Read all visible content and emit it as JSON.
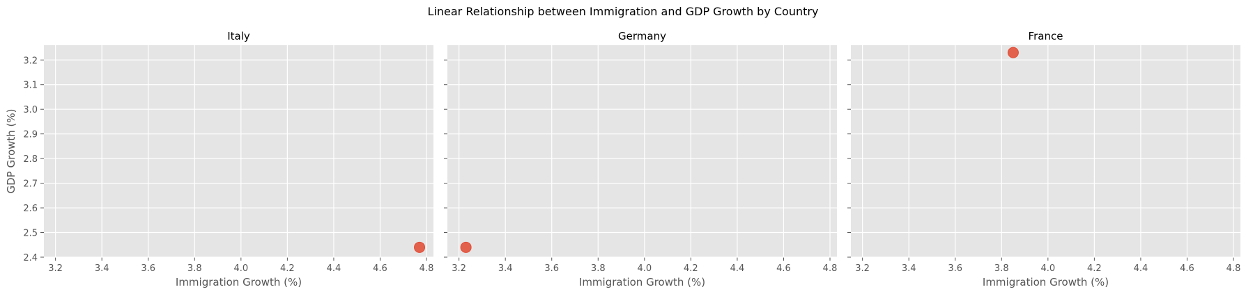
{
  "chart_data": {
    "type": "scatter",
    "title": "Linear Relationship between Immigration and GDP Growth by Country",
    "xlabel": "Immigration Growth (%)",
    "ylabel": "GDP Growth (%)",
    "xlim": [
      3.15,
      4.83
    ],
    "ylim": [
      2.4,
      3.26
    ],
    "x_ticks": [
      "3.2",
      "3.4",
      "3.6",
      "3.8",
      "4.0",
      "4.2",
      "4.4",
      "4.6",
      "4.8"
    ],
    "y_ticks": [
      "2.4",
      "2.5",
      "2.6",
      "2.7",
      "2.8",
      "2.9",
      "3.0",
      "3.1",
      "3.2"
    ],
    "grid": true,
    "panels": [
      {
        "name": "Italy",
        "points": [
          {
            "x": 4.77,
            "y": 2.44
          }
        ]
      },
      {
        "name": "Germany",
        "points": [
          {
            "x": 3.23,
            "y": 2.44
          }
        ]
      },
      {
        "name": "France",
        "points": [
          {
            "x": 3.85,
            "y": 3.23
          }
        ]
      }
    ],
    "colors": {
      "marker": "#E24A33",
      "panel_bg": "#E5E5E5",
      "grid": "#FFFFFF",
      "tick_text": "#555555"
    }
  }
}
